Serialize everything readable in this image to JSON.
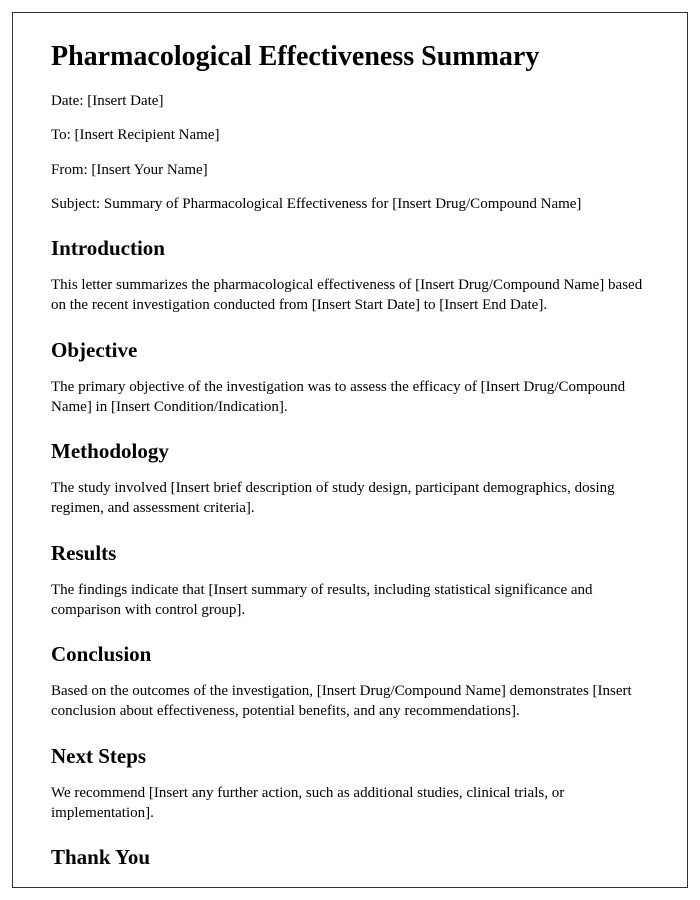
{
  "title": "Pharmacological Effectiveness Summary",
  "meta": {
    "date": "Date: [Insert Date]",
    "to": "To: [Insert Recipient Name]",
    "from": "From: [Insert Your Name]",
    "subject": "Subject: Summary of Pharmacological Effectiveness for [Insert Drug/Compound Name]"
  },
  "sections": {
    "introduction": {
      "heading": "Introduction",
      "body": "This letter summarizes the pharmacological effectiveness of [Insert Drug/Compound Name] based on the recent investigation conducted from [Insert Start Date] to [Insert End Date]."
    },
    "objective": {
      "heading": "Objective",
      "body": "The primary objective of the investigation was to assess the efficacy of [Insert Drug/Compound Name] in [Insert Condition/Indication]."
    },
    "methodology": {
      "heading": "Methodology",
      "body": "The study involved [Insert brief description of study design, participant demographics, dosing regimen, and assessment criteria]."
    },
    "results": {
      "heading": "Results",
      "body": "The findings indicate that [Insert summary of results, including statistical significance and comparison with control group]."
    },
    "conclusion": {
      "heading": "Conclusion",
      "body": "Based on the outcomes of the investigation, [Insert Drug/Compound Name] demonstrates [Insert conclusion about effectiveness, potential benefits, and any recommendations]."
    },
    "next_steps": {
      "heading": "Next Steps",
      "body": "We recommend [Insert any further action, such as additional studies, clinical trials, or implementation]."
    },
    "thank_you": {
      "heading": "Thank You"
    }
  }
}
